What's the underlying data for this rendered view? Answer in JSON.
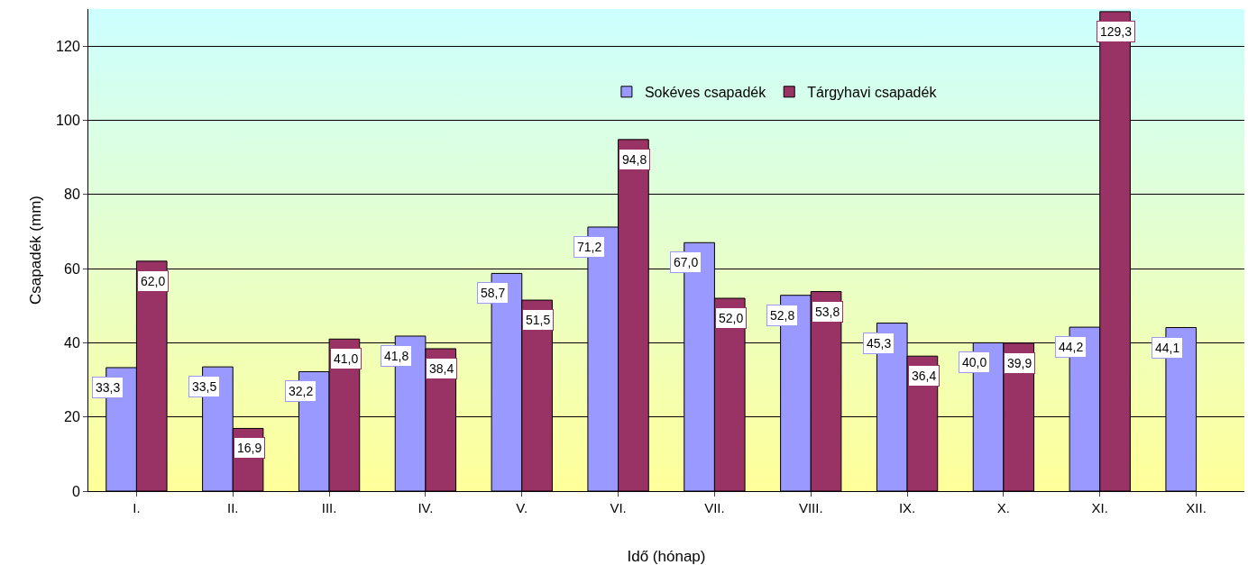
{
  "chart_data": {
    "type": "bar",
    "xlabel": "Idő (hónap)",
    "ylabel": "Csapadék (mm)",
    "categories": [
      "I.",
      "II.",
      "III.",
      "IV.",
      "V.",
      "VI.",
      "VII.",
      "VIII.",
      "IX.",
      "X.",
      "XI.",
      "XII."
    ],
    "series": [
      {
        "name": "Sokéves csapadék",
        "color": "#9999ff",
        "values": [
          33.3,
          33.5,
          32.2,
          41.8,
          58.7,
          71.2,
          67.0,
          52.8,
          45.3,
          40.0,
          44.2,
          44.1
        ],
        "value_labels": [
          "33,3",
          "33,5",
          "32,2",
          "41,8",
          "58,7",
          "71,2",
          "67,0",
          "52,8",
          "45,3",
          "40,0",
          "44,2",
          "44,1"
        ]
      },
      {
        "name": "Tárgyhavi csapadék",
        "color": "#993366",
        "values": [
          62.0,
          16.9,
          41.0,
          38.4,
          51.5,
          94.8,
          52.0,
          53.8,
          36.4,
          39.9,
          129.3,
          null
        ],
        "value_labels": [
          "62,0",
          "16,9",
          "41,0",
          "38,4",
          "51,5",
          "94,8",
          "52,0",
          "53,8",
          "36,4",
          "39,9",
          "129,3",
          null
        ]
      }
    ],
    "ylim": [
      0,
      130
    ],
    "yticks": [
      0,
      20,
      40,
      60,
      80,
      100,
      120
    ],
    "grid": "y",
    "legend": "top"
  }
}
